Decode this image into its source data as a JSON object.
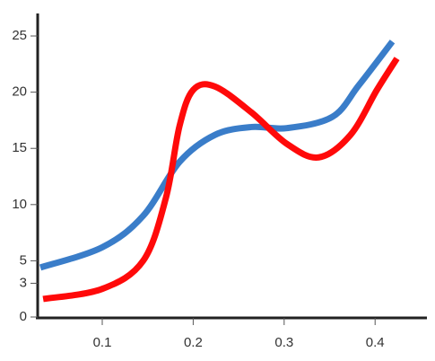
{
  "chart_data": {
    "type": "line",
    "xlim": [
      0.029,
      0.456
    ],
    "xticks": [
      0.1,
      0.2,
      0.3,
      0.4
    ],
    "ylim": [
      0,
      27
    ],
    "yticks": [
      0,
      3,
      5,
      10,
      15,
      20,
      25
    ],
    "series": [
      {
        "color": "#3a7dc9",
        "x": [
          0.032,
          0.1,
          0.145,
          0.185,
          0.224,
          0.264,
          0.303,
          0.353,
          0.382,
          0.419
        ],
        "values": [
          4.4,
          6.2,
          9.0,
          13.8,
          16.2,
          16.9,
          16.8,
          17.8,
          20.6,
          24.5
        ]
      },
      {
        "color": "#ff0a0a",
        "x": [
          0.035,
          0.1,
          0.145,
          0.17,
          0.185,
          0.2,
          0.224,
          0.264,
          0.303,
          0.338,
          0.373,
          0.402,
          0.424
        ],
        "values": [
          1.6,
          2.5,
          5.0,
          10.6,
          17.0,
          20.2,
          20.5,
          18.2,
          15.4,
          14.2,
          16.2,
          20.2,
          23.0
        ]
      }
    ]
  }
}
